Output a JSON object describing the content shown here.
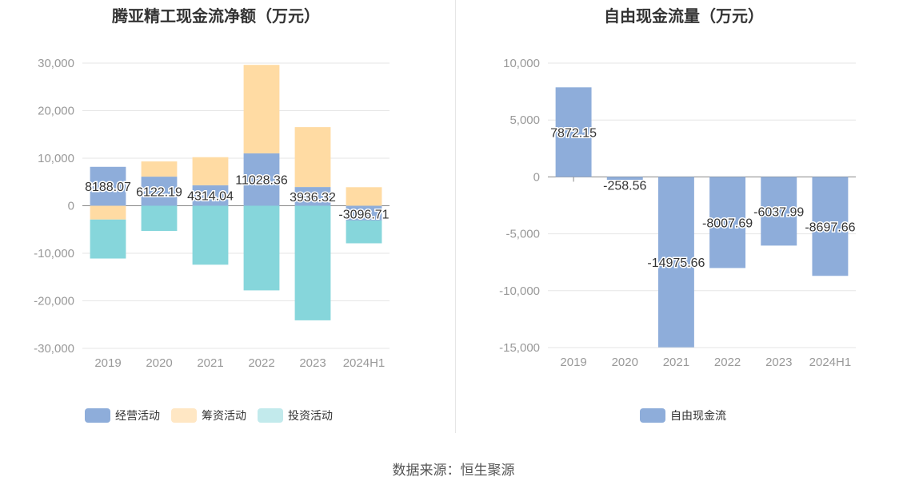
{
  "source": "数据来源：恒生聚源",
  "colors": {
    "operating": "#8eadda",
    "financing": "#ffdba3",
    "investing": "#86d6db",
    "fcf": "#8eadda",
    "grid": "#e6e6e6",
    "axis_text": "#999999",
    "label_text": "#333333"
  },
  "chart_data": [
    {
      "type": "bar",
      "stacked": true,
      "title": "腾亚精工现金流净额（万元）",
      "categories": [
        "2019",
        "2020",
        "2021",
        "2022",
        "2023",
        "2024H1"
      ],
      "ylim": [
        -30000,
        30000
      ],
      "yticks": [
        30000,
        20000,
        10000,
        0,
        -10000,
        -20000,
        -30000
      ],
      "ytick_labels": [
        "30,000",
        "20,000",
        "10,000",
        "0",
        "-10,000",
        "-20,000",
        "-30,000"
      ],
      "grid": true,
      "legend_position": "bottom",
      "series": [
        {
          "name": "经营活动",
          "color": "#8eadda",
          "values": [
            8188.07,
            6122.19,
            4314.04,
            11028.36,
            3936.32,
            -3096.71
          ]
        },
        {
          "name": "筹资活动",
          "color": "#ffdba3",
          "values": [
            -2900,
            3200,
            5900,
            18600,
            12600,
            3900
          ]
        },
        {
          "name": "投资活动",
          "color": "#86d6db",
          "values": [
            -8200,
            -5300,
            -12400,
            -17800,
            -24100,
            -4800
          ]
        }
      ],
      "data_labels": [
        "8188.07",
        "6122.19",
        "4314.04",
        "11028.36",
        "3936.32",
        "-3096.71"
      ]
    },
    {
      "type": "bar",
      "title": "自由现金流量（万元）",
      "categories": [
        "2019",
        "2020",
        "2021",
        "2022",
        "2023",
        "2024H1"
      ],
      "ylim": [
        -15000,
        10000
      ],
      "yticks": [
        10000,
        5000,
        0,
        -5000,
        -10000,
        -15000
      ],
      "ytick_labels": [
        "10,000",
        "5,000",
        "0",
        "-5,000",
        "-10,000",
        "-15,000"
      ],
      "grid": true,
      "legend_position": "bottom",
      "series": [
        {
          "name": "自由现金流",
          "color": "#8eadda",
          "values": [
            7872.15,
            -258.56,
            -14975.66,
            -8007.69,
            -6037.99,
            -8697.66
          ]
        }
      ],
      "data_labels": [
        "7872.15",
        "-258.56",
        "-14975.66",
        "-8007.69",
        "-6037.99",
        "-8697.66"
      ]
    }
  ]
}
